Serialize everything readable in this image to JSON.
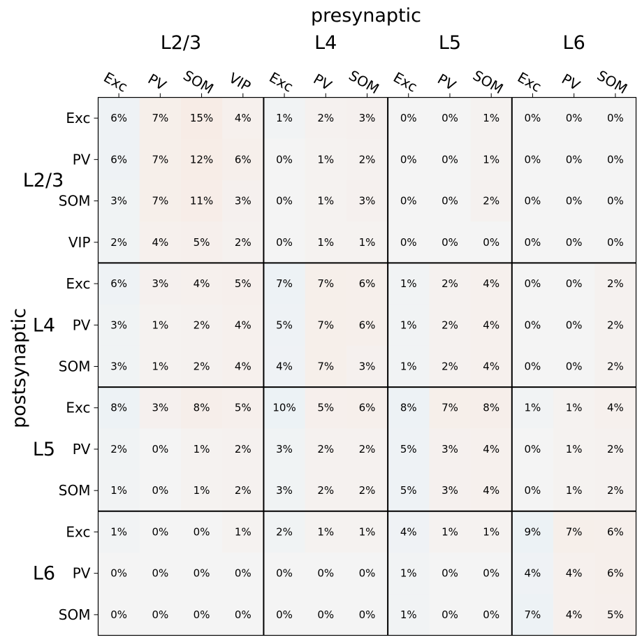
{
  "chart_data": {
    "type": "heatmap",
    "title": "",
    "xlabel": "presynaptic",
    "ylabel": "postsynaptic",
    "value_format": "percent",
    "x_groups": [
      {
        "layer": "L2/3",
        "cells": [
          "Exc",
          "PV",
          "SOM",
          "VIP"
        ]
      },
      {
        "layer": "L4",
        "cells": [
          "Exc",
          "PV",
          "SOM"
        ]
      },
      {
        "layer": "L5",
        "cells": [
          "Exc",
          "PV",
          "SOM"
        ]
      },
      {
        "layer": "L6",
        "cells": [
          "Exc",
          "PV",
          "SOM"
        ]
      }
    ],
    "y_groups": [
      {
        "layer": "L2/3",
        "cells": [
          "Exc",
          "PV",
          "SOM",
          "VIP"
        ]
      },
      {
        "layer": "L4",
        "cells": [
          "Exc",
          "PV",
          "SOM"
        ]
      },
      {
        "layer": "L5",
        "cells": [
          "Exc",
          "PV",
          "SOM"
        ]
      },
      {
        "layer": "L6",
        "cells": [
          "Exc",
          "PV",
          "SOM"
        ]
      }
    ],
    "values": [
      [
        6,
        7,
        15,
        4,
        1,
        2,
        3,
        0,
        0,
        1,
        0,
        0,
        0
      ],
      [
        6,
        7,
        12,
        6,
        0,
        1,
        2,
        0,
        0,
        1,
        0,
        0,
        0
      ],
      [
        3,
        7,
        11,
        3,
        0,
        1,
        3,
        0,
        0,
        2,
        0,
        0,
        0
      ],
      [
        2,
        4,
        5,
        2,
        0,
        1,
        1,
        0,
        0,
        0,
        0,
        0,
        0
      ],
      [
        6,
        3,
        4,
        5,
        7,
        7,
        6,
        1,
        2,
        4,
        0,
        0,
        2
      ],
      [
        3,
        1,
        2,
        4,
        5,
        7,
        6,
        1,
        2,
        4,
        0,
        0,
        2
      ],
      [
        3,
        1,
        2,
        4,
        4,
        7,
        3,
        1,
        2,
        4,
        0,
        0,
        2
      ],
      [
        8,
        3,
        8,
        5,
        10,
        5,
        6,
        8,
        7,
        8,
        1,
        1,
        4
      ],
      [
        2,
        0,
        1,
        2,
        3,
        2,
        2,
        5,
        3,
        4,
        0,
        1,
        2
      ],
      [
        1,
        0,
        1,
        2,
        3,
        2,
        2,
        5,
        3,
        4,
        0,
        1,
        2
      ],
      [
        1,
        0,
        0,
        1,
        2,
        1,
        1,
        4,
        1,
        1,
        9,
        7,
        6
      ],
      [
        0,
        0,
        0,
        0,
        0,
        0,
        0,
        1,
        0,
        0,
        4,
        4,
        6
      ],
      [
        0,
        0,
        0,
        0,
        0,
        0,
        0,
        1,
        0,
        0,
        7,
        4,
        5
      ]
    ],
    "colors": {
      "excitatory_tint": "#eaf1f5",
      "inhibitory_tint": "#f7ece6",
      "neutral": "#f4f4f4",
      "border": "#000000"
    }
  }
}
